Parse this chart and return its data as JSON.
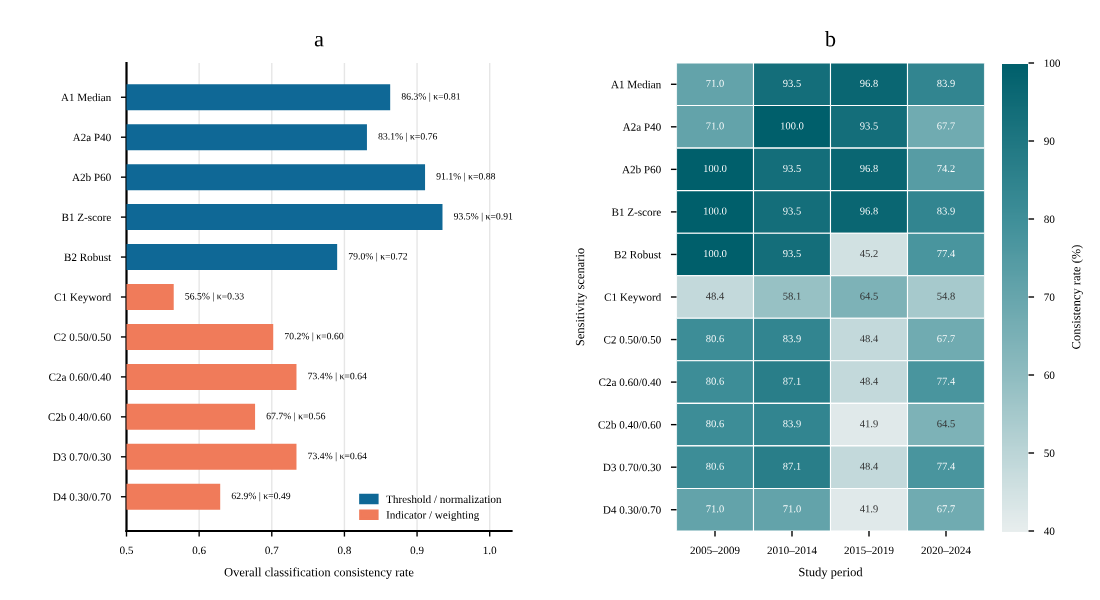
{
  "chart_data": [
    {
      "type": "bar",
      "title": "a",
      "orientation": "horizontal",
      "xlabel": "Overall classification consistency rate",
      "categories": [
        "A1 Median",
        "A2a P40",
        "A2b P60",
        "B1 Z-score",
        "B2 Robust",
        "C1 Keyword",
        "C2 0.50/0.50",
        "C2a 0.60/0.40",
        "C2b 0.40/0.60",
        "D3 0.70/0.30",
        "D4 0.30/0.70"
      ],
      "series": [
        {
          "name": "Threshold / normalization",
          "color": "#0f6896",
          "values": [
            0.863,
            0.831,
            0.911,
            0.935,
            0.79,
            null,
            null,
            null,
            null,
            null,
            null
          ],
          "value_labels": [
            "86.3% | κ=0.81",
            "83.1% | κ=0.76",
            "91.1% | κ=0.88",
            "93.5% | κ=0.91",
            "79.0% | κ=0.72",
            null,
            null,
            null,
            null,
            null,
            null
          ]
        },
        {
          "name": "Indicator / weighting",
          "color": "#f07b5a",
          "values": [
            null,
            null,
            null,
            null,
            null,
            0.565,
            0.702,
            0.734,
            0.677,
            0.734,
            0.629
          ],
          "value_labels": [
            null,
            null,
            null,
            null,
            null,
            "56.5% | κ=0.33",
            "70.2% | κ=0.60",
            "73.4% | κ=0.64",
            "67.7% | κ=0.56",
            "73.4% | κ=0.64",
            "62.9% | κ=0.49"
          ]
        }
      ],
      "xlim": [
        0.5,
        1.03
      ],
      "xticks": [
        0.5,
        0.6,
        0.7,
        0.8,
        0.9,
        {
          "value": 1.0,
          "label": "1.0"
        }
      ],
      "grid": "x",
      "legend": "bottom right"
    },
    {
      "type": "heatmap",
      "title": "b",
      "xlabel": "Study period",
      "ylabel": "Sensitivity scenario",
      "clabel": "Consistency rate (%)",
      "categories": [
        "2005–2009",
        "2010–2014",
        "2015–2019",
        "2020–2024"
      ],
      "y_categories": [
        "A1 Median",
        "A2a P40",
        "A2b P60",
        "B1 Z-score",
        "B2 Robust",
        "C1 Keyword",
        "C2 0.50/0.50",
        "C2a 0.60/0.40",
        "C2b 0.40/0.60",
        "D3 0.70/0.30",
        "D4 0.30/0.70"
      ],
      "cells": [
        [
          71.0,
          93.5,
          96.8,
          83.9
        ],
        [
          71.0,
          100.0,
          93.5,
          67.7
        ],
        [
          100.0,
          93.5,
          96.8,
          74.2
        ],
        [
          100.0,
          93.5,
          96.8,
          83.9
        ],
        [
          100.0,
          93.5,
          45.2,
          77.4
        ],
        [
          48.4,
          58.1,
          64.5,
          54.8
        ],
        [
          80.6,
          83.9,
          48.4,
          67.7
        ],
        [
          80.6,
          87.1,
          48.4,
          77.4
        ],
        [
          80.6,
          83.9,
          41.9,
          64.5
        ],
        [
          80.6,
          87.1,
          48.4,
          77.4
        ],
        [
          71.0,
          71.0,
          41.9,
          67.7
        ]
      ],
      "cell_labels": [
        [
          "71.0",
          "93.5",
          "96.8",
          "83.9"
        ],
        [
          "71.0",
          "100.0",
          "93.5",
          "67.7"
        ],
        [
          "100.0",
          "93.5",
          "96.8",
          "74.2"
        ],
        [
          "100.0",
          "93.5",
          "96.8",
          "83.9"
        ],
        [
          "100.0",
          "93.5",
          "45.2",
          "77.4"
        ],
        [
          "48.4",
          "58.1",
          "64.5",
          "54.8"
        ],
        [
          "80.6",
          "83.9",
          "48.4",
          "67.7"
        ],
        [
          "80.6",
          "87.1",
          "48.4",
          "77.4"
        ],
        [
          "80.6",
          "83.9",
          "41.9",
          "64.5"
        ],
        [
          "80.6",
          "87.1",
          "48.4",
          "77.4"
        ],
        [
          "71.0",
          "71.0",
          "41.9",
          "67.7"
        ]
      ],
      "clim": [
        40,
        100
      ],
      "cticks": [
        40,
        50,
        60,
        70,
        80,
        90,
        100
      ]
    }
  ]
}
